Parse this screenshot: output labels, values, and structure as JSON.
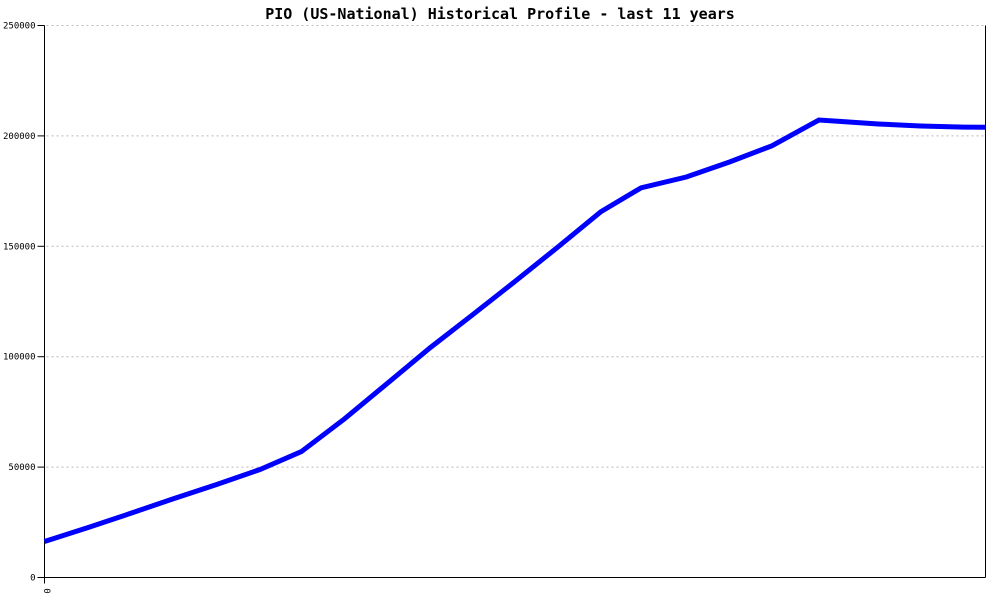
{
  "colors": {
    "background": "#ffffff",
    "axis": "#000000",
    "grid": "#b8b8b8",
    "title_text": "#000000",
    "line": "#0000ff"
  },
  "chart_data": {
    "type": "line",
    "title": "PIO (US-National) Historical Profile - last 11 years",
    "xlabel": "",
    "ylabel": "",
    "legend": "none",
    "grid": {
      "horizontal": true,
      "style": "dotted"
    },
    "x_axis": {
      "visible_tick_labels": [
        "0"
      ],
      "tick_label_rotation_deg": 90
    },
    "y_axis": {
      "range": [
        0,
        250000
      ],
      "ticks": [
        0,
        50000,
        100000,
        150000,
        200000,
        250000
      ],
      "tick_labels": [
        "0",
        "50000",
        "100000",
        "150000",
        "200000",
        "250000"
      ]
    },
    "series": [
      {
        "name": "PIO (US-National)",
        "color": "#0000ff",
        "stroke_width": 5,
        "points_xfrac_value": [
          [
            0.0,
            16300
          ],
          [
            0.046,
            22600
          ],
          [
            0.091,
            29000
          ],
          [
            0.137,
            35700
          ],
          [
            0.183,
            42100
          ],
          [
            0.229,
            48900
          ],
          [
            0.273,
            57000
          ],
          [
            0.319,
            71900
          ],
          [
            0.365,
            88200
          ],
          [
            0.41,
            104100
          ],
          [
            0.455,
            119000
          ],
          [
            0.501,
            134400
          ],
          [
            0.546,
            149800
          ],
          [
            0.591,
            165600
          ],
          [
            0.634,
            176500
          ],
          [
            0.682,
            181400
          ],
          [
            0.728,
            188200
          ],
          [
            0.773,
            195500
          ],
          [
            0.823,
            207200
          ],
          [
            0.843,
            206600
          ],
          [
            0.886,
            205400
          ],
          [
            0.931,
            204500
          ],
          [
            0.977,
            204000
          ],
          [
            1.0,
            203900
          ]
        ]
      }
    ]
  }
}
